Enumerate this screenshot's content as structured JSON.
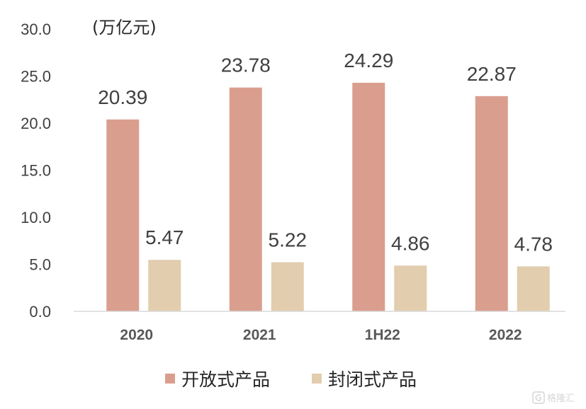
{
  "chart_data": {
    "type": "bar",
    "unit": "(万亿元)",
    "categories": [
      "2020",
      "2021",
      "1H22",
      "2022"
    ],
    "series": [
      {
        "name": "开放式产品",
        "color": "#DA9E8E",
        "values": [
          20.39,
          23.78,
          24.29,
          22.87
        ],
        "labels": [
          "20.39",
          "23.78",
          "24.29",
          "22.87"
        ]
      },
      {
        "name": "封闭式产品",
        "color": "#E2CDAE",
        "values": [
          5.47,
          5.22,
          4.86,
          4.78
        ],
        "labels": [
          "5.47",
          "5.22",
          "4.86",
          "4.78"
        ]
      }
    ],
    "ylim": [
      0,
      30
    ],
    "yticks": [
      0,
      5,
      10,
      15,
      20,
      25,
      30
    ],
    "ytick_labels": [
      "0.0",
      "5.0",
      "10.0",
      "15.0",
      "20.0",
      "25.0",
      "30.0"
    ],
    "grid": false,
    "legend_position": "bottom"
  },
  "watermark": {
    "text": "格隆汇",
    "icon": "gelonghui-logo"
  }
}
